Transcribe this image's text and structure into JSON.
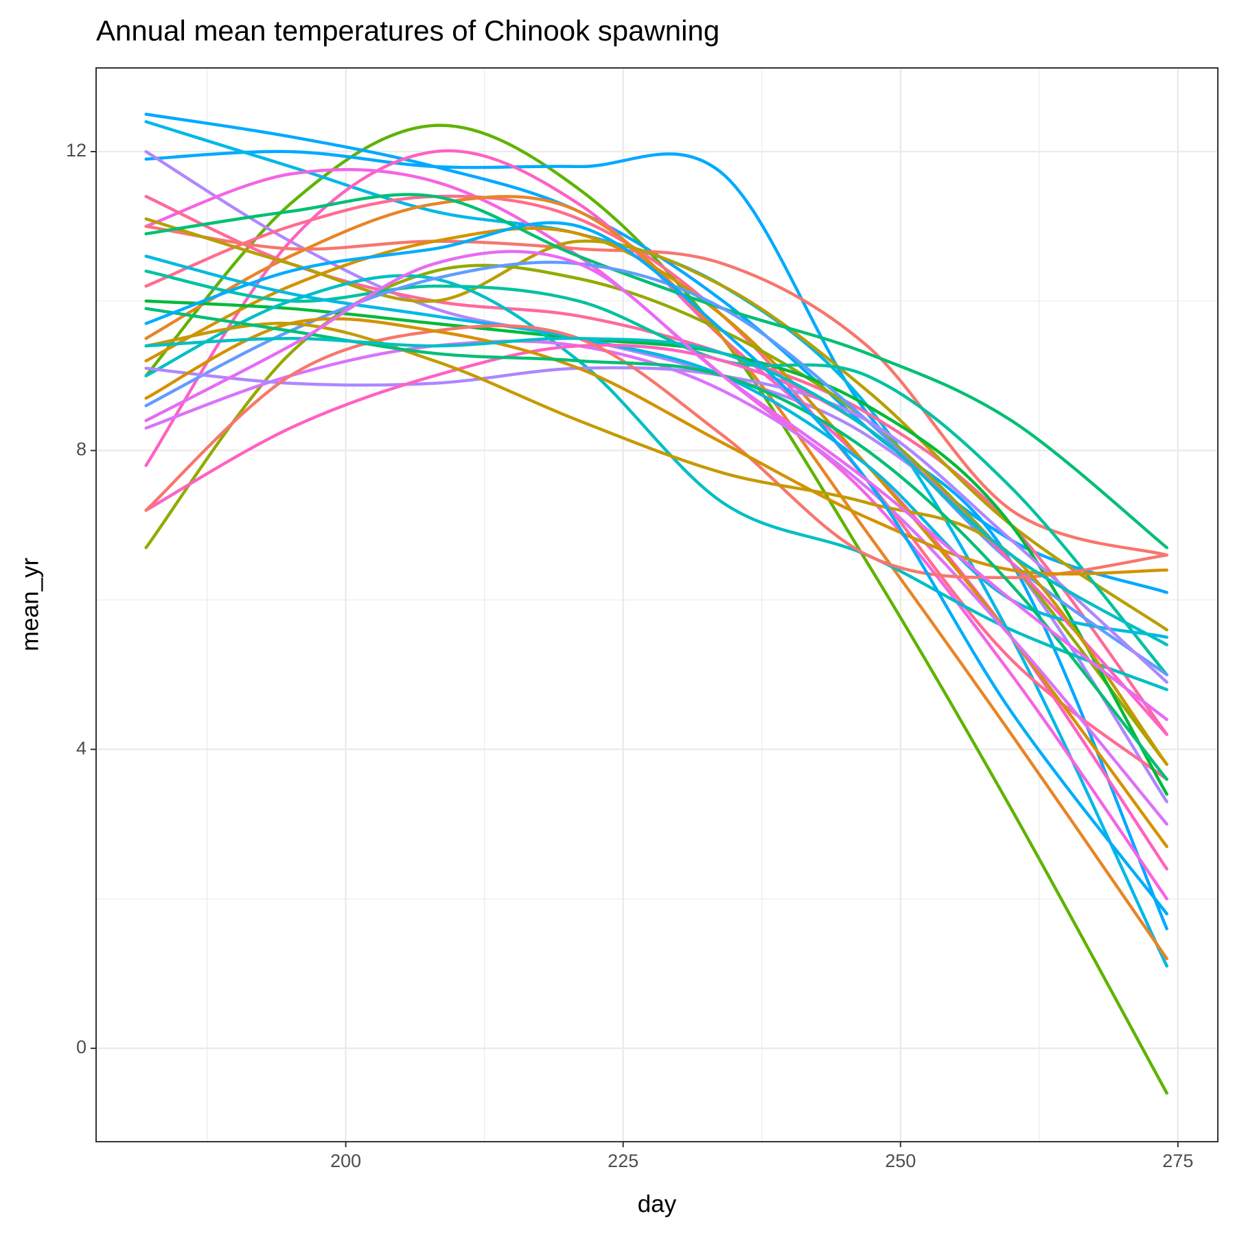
{
  "chart_data": {
    "type": "line",
    "title": "Annual mean temperatures of Chinook spawning",
    "xlabel": "day",
    "ylabel": "mean_yr",
    "xlim": [
      177.5,
      278.6
    ],
    "ylim": [
      -1.25,
      13.12
    ],
    "xticks": [
      200,
      225,
      250,
      275
    ],
    "yticks": [
      0,
      4,
      8,
      12
    ],
    "grid": true,
    "minor_grid": true,
    "x": [
      182,
      195,
      208,
      221,
      234,
      247,
      260,
      274
    ],
    "series": [
      {
        "color": "#5EB300",
        "values": [
          9.0,
          11.3,
          12.35,
          11.5,
          9.5,
          6.5,
          3.2,
          -0.6
        ]
      },
      {
        "color": "#00A9FF",
        "values": [
          11.9,
          12.0,
          11.8,
          11.8,
          11.7,
          8.5,
          6.8,
          6.1
        ]
      },
      {
        "color": "#00A9FF",
        "values": [
          12.5,
          12.2,
          11.8,
          11.2,
          10.0,
          8.3,
          6.5,
          1.6
        ]
      },
      {
        "color": "#00B8E7",
        "values": [
          12.4,
          11.8,
          11.2,
          10.9,
          10.2,
          8.6,
          5.5,
          1.1
        ]
      },
      {
        "color": "#AE87FF",
        "values": [
          12.0,
          10.8,
          9.9,
          9.5,
          9.0,
          8.2,
          6.5,
          3.3
        ]
      },
      {
        "color": "#FF61C3",
        "values": [
          7.8,
          10.8,
          12.0,
          11.3,
          9.5,
          7.8,
          5.5,
          2.4
        ]
      },
      {
        "color": "#F564E3",
        "values": [
          11.0,
          11.7,
          11.6,
          10.6,
          9.0,
          7.4,
          5.0,
          2.0
        ]
      },
      {
        "color": "#FF6C91",
        "values": [
          10.2,
          11.0,
          11.4,
          11.1,
          9.8,
          7.6,
          5.2,
          3.6
        ]
      },
      {
        "color": "#FF699C",
        "values": [
          11.4,
          10.5,
          10.0,
          9.8,
          9.3,
          8.5,
          7.0,
          4.2
        ]
      },
      {
        "color": "#F8766D",
        "values": [
          11.0,
          10.7,
          10.8,
          10.7,
          10.5,
          9.4,
          7.2,
          6.6
        ]
      },
      {
        "color": "#E88526",
        "values": [
          9.5,
          10.6,
          11.3,
          11.2,
          9.5,
          6.9,
          4.2,
          1.2
        ]
      },
      {
        "color": "#D39200",
        "values": [
          9.2,
          10.2,
          10.8,
          10.9,
          9.8,
          7.8,
          5.5,
          2.7
        ]
      },
      {
        "color": "#B79F00",
        "values": [
          11.1,
          10.5,
          10.0,
          10.8,
          10.2,
          8.8,
          7.0,
          5.6
        ]
      },
      {
        "color": "#93AA00",
        "values": [
          6.7,
          9.3,
          10.4,
          10.3,
          9.6,
          8.4,
          6.5,
          3.8
        ]
      },
      {
        "color": "#00BA38",
        "values": [
          10.0,
          9.9,
          9.7,
          9.5,
          9.3,
          8.6,
          7.0,
          3.4
        ]
      },
      {
        "color": "#00BF74",
        "values": [
          10.9,
          11.2,
          11.4,
          10.6,
          9.9,
          9.3,
          8.4,
          6.7
        ]
      },
      {
        "color": "#00C19F",
        "values": [
          10.4,
          10.0,
          10.2,
          10.0,
          9.2,
          9.0,
          7.5,
          5.0
        ]
      },
      {
        "color": "#00BFC4",
        "values": [
          9.0,
          10.0,
          10.3,
          9.2,
          7.3,
          6.6,
          5.6,
          4.8
        ]
      },
      {
        "color": "#00B9E3",
        "values": [
          10.6,
          10.1,
          9.8,
          9.5,
          9.0,
          7.8,
          6.0,
          5.5
        ]
      },
      {
        "color": "#619CFF",
        "values": [
          8.6,
          9.6,
          10.3,
          10.5,
          9.9,
          8.4,
          6.5,
          5.0
        ]
      },
      {
        "color": "#DB72FB",
        "values": [
          8.3,
          9.0,
          9.4,
          9.4,
          8.8,
          7.5,
          5.5,
          3.0
        ]
      },
      {
        "color": "#AE87FF",
        "values": [
          9.1,
          8.9,
          8.9,
          9.1,
          9.0,
          8.4,
          6.8,
          4.9
        ]
      },
      {
        "color": "#FF61C3",
        "values": [
          7.2,
          8.3,
          9.0,
          9.4,
          9.2,
          8.3,
          6.5,
          4.2
        ]
      },
      {
        "color": "#F8766D",
        "values": [
          7.2,
          9.0,
          9.6,
          9.5,
          8.2,
          6.6,
          6.3,
          6.6
        ]
      },
      {
        "color": "#D39200",
        "values": [
          8.7,
          9.7,
          9.6,
          9.1,
          8.1,
          7.1,
          6.4,
          6.4
        ]
      },
      {
        "color": "#C49A00",
        "values": [
          9.4,
          9.7,
          9.2,
          8.4,
          7.7,
          7.3,
          6.6,
          3.8
        ]
      },
      {
        "color": "#00BF74",
        "values": [
          9.9,
          9.6,
          9.3,
          9.2,
          9.0,
          8.0,
          6.2,
          3.6
        ]
      },
      {
        "color": "#00ADFA",
        "values": [
          9.7,
          10.4,
          10.7,
          11.0,
          9.6,
          7.6,
          4.5,
          1.8
        ]
      },
      {
        "color": "#00BFC4",
        "values": [
          9.4,
          9.5,
          9.4,
          9.5,
          9.3,
          8.3,
          6.6,
          5.4
        ]
      },
      {
        "color": "#E76BF3",
        "values": [
          8.4,
          9.4,
          10.5,
          10.5,
          9.0,
          7.6,
          6.0,
          4.4
        ]
      }
    ]
  }
}
